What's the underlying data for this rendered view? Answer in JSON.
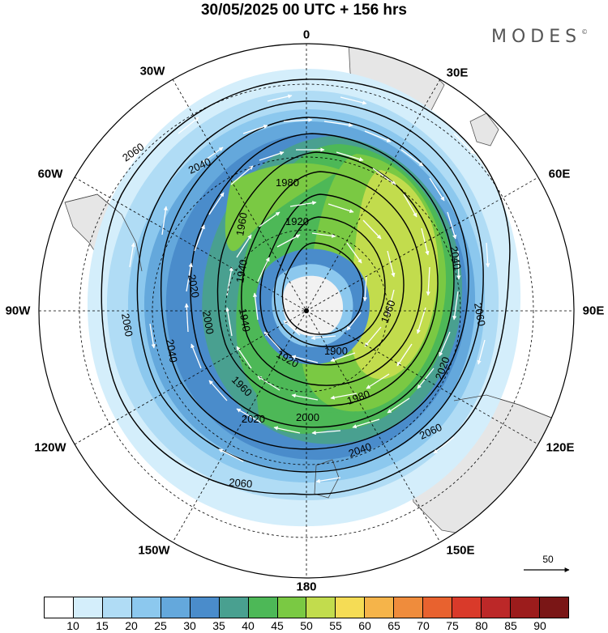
{
  "title": "30/05/2025  00 UTC  + 156 hrs",
  "brand": "MODES",
  "brand_mark": "©",
  "longitude_labels": {
    "n0": "0",
    "e30": "30E",
    "e60": "60E",
    "e90": "90E",
    "e120": "120E",
    "e150": "150E",
    "s180": "180",
    "w150": "150W",
    "w120": "120W",
    "w90": "90W",
    "w60": "60W",
    "w30": "30W"
  },
  "contour_labels": [
    "2060",
    "2040",
    "2020",
    "2000",
    "1980",
    "1960",
    "1940",
    "1920",
    "1900"
  ],
  "vector_reference": {
    "value": "50"
  },
  "colorbar": {
    "labels": [
      "10",
      "15",
      "20",
      "25",
      "30",
      "35",
      "40",
      "45",
      "50",
      "55",
      "60",
      "65",
      "70",
      "75",
      "80",
      "85",
      "90"
    ],
    "colors": [
      "#ffffff",
      "#d4eefb",
      "#b0dcf5",
      "#8cc8ee",
      "#64a8dc",
      "#4a8ccb",
      "#49a090",
      "#4db857",
      "#7ac943",
      "#c2dc4d",
      "#f5dc55",
      "#f5b44a",
      "#ef8c3c",
      "#e8622f",
      "#d93a2a",
      "#bc2828",
      "#9c1c1c",
      "#7a1616"
    ]
  }
}
